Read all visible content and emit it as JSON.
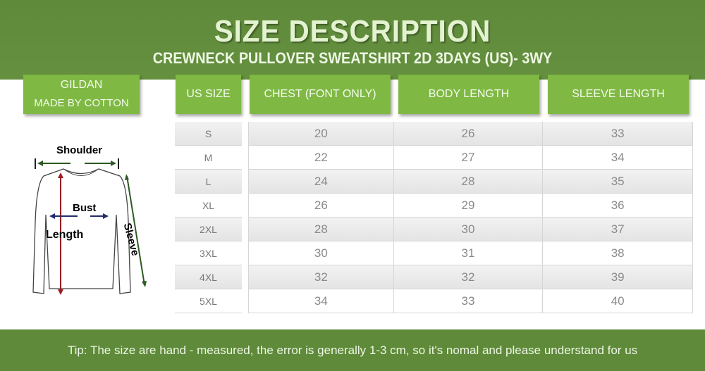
{
  "header": {
    "title": "SIZE DESCRIPTION",
    "subtitle": "CREWNECK PULLOVER SWEATSHIRT 2D 3DAYS (US)- 3WY"
  },
  "brand": {
    "name": "GILDAN",
    "material": "MADE BY COTTON"
  },
  "columns": [
    "US SIZE",
    "CHEST (FONT ONLY)",
    "BODY LENGTH",
    "SLEEVE LENGTH"
  ],
  "rows": [
    {
      "size": "S",
      "chest": "20",
      "body": "26",
      "sleeve": "33"
    },
    {
      "size": "M",
      "chest": "22",
      "body": "27",
      "sleeve": "34"
    },
    {
      "size": "L",
      "chest": "24",
      "body": "28",
      "sleeve": "35"
    },
    {
      "size": "XL",
      "chest": "26",
      "body": "29",
      "sleeve": "36"
    },
    {
      "size": "2XL",
      "chest": "28",
      "body": "30",
      "sleeve": "37"
    },
    {
      "size": "3XL",
      "chest": "30",
      "body": "31",
      "sleeve": "38"
    },
    {
      "size": "4XL",
      "chest": "32",
      "body": "32",
      "sleeve": "39"
    },
    {
      "size": "5XL",
      "chest": "34",
      "body": "33",
      "sleeve": "40"
    }
  ],
  "diagram": {
    "shoulder": "Shoulder",
    "bust": "Bust",
    "length": "Length",
    "sleeve": "Sleeve"
  },
  "footer": {
    "tip": "Tip: The size are hand - measured, the error is generally 1-3 cm, so it's nomal and please understand for us"
  },
  "colors": {
    "dark_green": "#5e8a3a",
    "light_green": "#7fb944"
  }
}
